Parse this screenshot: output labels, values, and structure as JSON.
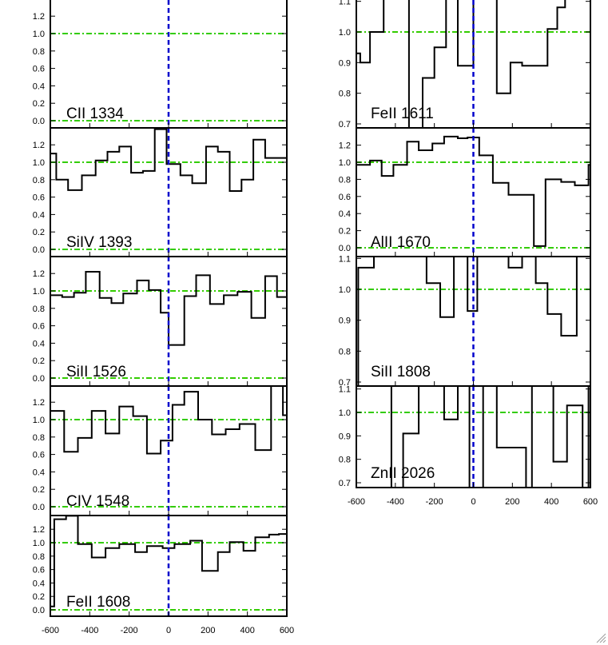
{
  "chart_data": {
    "type": "line",
    "style": "step",
    "x_unit": "velocity",
    "xlim": [
      -600,
      600
    ],
    "x_ticks": [
      "-600",
      "-400",
      "-200",
      "0",
      "200",
      "400",
      "600"
    ],
    "reference_line_x": 0,
    "colors": {
      "spectrum": "#000000",
      "zero_line": "#0000cc",
      "reference_levels": "#33cc00",
      "axes": "#000000"
    },
    "grid": false,
    "panels": [
      {
        "label": "CII 1334",
        "ylim": [
          -0.05,
          1.35
        ],
        "y_ticks": [
          "0.0",
          "0.2",
          "0.4",
          "0.6",
          "0.8",
          "1.0",
          "1.2"
        ],
        "y_tick_values": [
          0,
          0.2,
          0.4,
          0.6,
          0.8,
          1.0,
          1.2
        ],
        "ref_levels": [
          0,
          1
        ],
        "x": [],
        "y": []
      },
      {
        "label": "SiIV 1393",
        "ylim": [
          -0.05,
          1.35
        ],
        "y_ticks": [
          "0.0",
          "0.2",
          "0.4",
          "0.6",
          "0.8",
          "1.0",
          "1.2"
        ],
        "y_tick_values": [
          0,
          0.2,
          0.4,
          0.6,
          0.8,
          1.0,
          1.2
        ],
        "ref_levels": [
          0,
          1
        ],
        "x": [
          -600,
          -570,
          -510,
          -440,
          -370,
          -310,
          -250,
          -190,
          -130,
          -70,
          -10,
          60,
          120,
          190,
          250,
          310,
          370,
          430,
          490,
          550
        ],
        "y": [
          1.1,
          0.8,
          0.68,
          0.85,
          1.02,
          1.12,
          1.18,
          0.88,
          0.9,
          1.38,
          0.98,
          0.85,
          0.76,
          1.18,
          1.12,
          0.67,
          0.8,
          1.26,
          1.05,
          1.05
        ]
      },
      {
        "label": "SiII 1526",
        "ylim": [
          -0.05,
          1.35
        ],
        "y_ticks": [
          "0.0",
          "0.2",
          "0.4",
          "0.6",
          "0.8",
          "1.0",
          "1.2"
        ],
        "y_tick_values": [
          0,
          0.2,
          0.4,
          0.6,
          0.8,
          1.0,
          1.2
        ],
        "ref_levels": [
          0,
          1
        ],
        "x": [
          -600,
          -540,
          -480,
          -420,
          -350,
          -290,
          -230,
          -160,
          -100,
          -40,
          0,
          80,
          140,
          210,
          280,
          350,
          420,
          490,
          550,
          580
        ],
        "y": [
          0.95,
          0.93,
          0.98,
          1.22,
          0.92,
          0.86,
          0.97,
          1.12,
          1.01,
          0.75,
          0.38,
          0.94,
          1.18,
          0.85,
          0.95,
          0.99,
          0.69,
          1.17,
          0.93,
          0.93
        ]
      },
      {
        "label": "CIV 1548",
        "ylim": [
          -0.05,
          1.35
        ],
        "y_ticks": [
          "0.0",
          "0.2",
          "0.4",
          "0.6",
          "0.8",
          "1.0",
          "1.2"
        ],
        "y_tick_values": [
          0,
          0.2,
          0.4,
          0.6,
          0.8,
          1.0,
          1.2
        ],
        "ref_levels": [
          0,
          1
        ],
        "x": [
          -600,
          -530,
          -460,
          -390,
          -320,
          -250,
          -180,
          -110,
          -40,
          20,
          80,
          150,
          220,
          290,
          360,
          440,
          520,
          580
        ],
        "y": [
          1.1,
          0.63,
          0.79,
          1.1,
          0.84,
          1.15,
          1.04,
          0.61,
          0.76,
          1.17,
          1.32,
          1.0,
          0.83,
          0.89,
          0.95,
          0.65,
          1.4,
          1.05
        ]
      },
      {
        "label": "FeII 1608",
        "ylim": [
          -0.05,
          1.42
        ],
        "y_ticks": [
          "0.0",
          "0.2",
          "0.4",
          "0.6",
          "0.8",
          "1.0",
          "1.2"
        ],
        "y_tick_values": [
          0,
          0.2,
          0.4,
          0.6,
          0.8,
          1.0,
          1.2
        ],
        "ref_levels": [
          0,
          1
        ],
        "x": [
          -600,
          -580,
          -520,
          -460,
          -390,
          -320,
          -250,
          -170,
          -110,
          -30,
          30,
          110,
          170,
          250,
          310,
          380,
          440,
          510,
          560
        ],
        "y": [
          0.05,
          1.35,
          1.4,
          0.98,
          0.78,
          0.92,
          0.98,
          0.86,
          0.95,
          0.92,
          0.98,
          1.03,
          0.58,
          0.86,
          1.01,
          0.88,
          1.08,
          1.12,
          1.13
        ]
      },
      {
        "label": "FeII 1611",
        "ylim": [
          0.7,
          1.11
        ],
        "y_ticks": [
          "0.7",
          "0.8",
          "0.9",
          "1.0",
          "1.1"
        ],
        "y_tick_values": [
          0.7,
          0.8,
          0.9,
          1.0,
          1.1
        ],
        "ref_levels": [
          1
        ],
        "x": [
          -600,
          -580,
          -530,
          -460,
          -400,
          -330,
          -260,
          -200,
          -140,
          -80,
          0,
          60,
          120,
          190,
          250,
          290,
          380,
          430,
          470,
          530
        ],
        "y": [
          0.93,
          0.9,
          1.0,
          1.2,
          1.3,
          0.6,
          0.85,
          0.95,
          1.15,
          0.89,
          1.15,
          1.2,
          0.8,
          0.9,
          0.89,
          0.89,
          1.01,
          1.08,
          1.11,
          1.2
        ]
      },
      {
        "label": "AlII 1670",
        "ylim": [
          -0.05,
          1.35
        ],
        "y_ticks": [
          "0.0",
          "0.2",
          "0.4",
          "0.6",
          "0.8",
          "1.0",
          "1.2"
        ],
        "y_tick_values": [
          0,
          0.2,
          0.4,
          0.6,
          0.8,
          1.0,
          1.2
        ],
        "ref_levels": [
          0,
          1
        ],
        "x": [
          -600,
          -530,
          -470,
          -410,
          -340,
          -280,
          -210,
          -150,
          -80,
          -30,
          30,
          100,
          180,
          290,
          310,
          370,
          450,
          520,
          590
        ],
        "y": [
          0.97,
          1.02,
          0.84,
          0.97,
          1.24,
          1.14,
          1.22,
          1.3,
          1.28,
          1.29,
          1.08,
          0.76,
          0.62,
          0.62,
          0.02,
          0.8,
          0.77,
          0.73,
          0.97
        ]
      },
      {
        "label": "SiII 1808",
        "ylim": [
          0.7,
          1.11
        ],
        "y_ticks": [
          "0.7",
          "0.8",
          "0.9",
          "1.0",
          "1.1"
        ],
        "y_tick_values": [
          0.7,
          0.8,
          0.9,
          1.0,
          1.1
        ],
        "ref_levels": [
          1
        ],
        "x": [
          -600,
          -590,
          -510,
          -240,
          -170,
          -100,
          -30,
          20,
          180,
          250,
          320,
          380,
          450,
          530,
          590
        ],
        "y": [
          0.68,
          1.07,
          1.12,
          1.02,
          0.91,
          1.15,
          0.93,
          1.15,
          1.07,
          1.15,
          1.02,
          0.92,
          0.85,
          1.15,
          1.15
        ]
      },
      {
        "label": "ZnII 2026",
        "ylim": [
          0.7,
          1.11
        ],
        "y_ticks": [
          "0.7",
          "0.8",
          "0.9",
          "1.0",
          "1.1"
        ],
        "y_tick_values": [
          0.7,
          0.8,
          0.9,
          1.0,
          1.1
        ],
        "ref_levels": [
          1
        ],
        "x": [
          -600,
          -420,
          -360,
          -280,
          -150,
          -80,
          -20,
          50,
          120,
          270,
          300,
          410,
          480,
          560,
          590
        ],
        "y": [
          1.2,
          0.6,
          0.91,
          1.12,
          0.97,
          1.15,
          0.5,
          1.15,
          0.85,
          0.5,
          1.2,
          0.79,
          1.03,
          0.65,
          1.2
        ]
      }
    ]
  }
}
